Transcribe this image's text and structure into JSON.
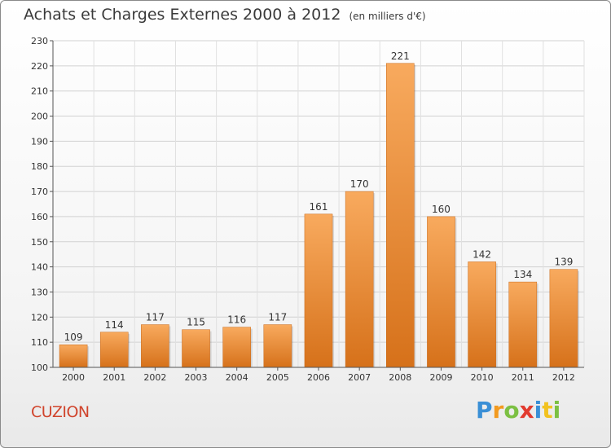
{
  "header": {
    "title": "Achats et Charges Externes 2000 à 2012",
    "subtitle": "(en milliers d'€)"
  },
  "commune": "CUZION",
  "logo": {
    "letters": [
      "P",
      "r",
      "o",
      "x",
      "i",
      "t",
      "i"
    ]
  },
  "colors": {
    "bar_top": "#f7a65a",
    "bar_bottom": "#d9741c",
    "commune_text": "#d0442c"
  },
  "chart_data": {
    "type": "bar",
    "title": "Achats et Charges Externes 2000 à 2012",
    "subtitle": "(en milliers d'€)",
    "categories": [
      "2000",
      "2001",
      "2002",
      "2003",
      "2004",
      "2005",
      "2006",
      "2007",
      "2008",
      "2009",
      "2010",
      "2011",
      "2012"
    ],
    "values": [
      109,
      114,
      117,
      115,
      116,
      117,
      161,
      170,
      221,
      160,
      142,
      134,
      139
    ],
    "ylim": [
      100,
      230
    ],
    "yticks": [
      100,
      110,
      120,
      130,
      140,
      150,
      160,
      170,
      180,
      190,
      200,
      210,
      220,
      230
    ],
    "grid": true,
    "data_labels": true
  }
}
